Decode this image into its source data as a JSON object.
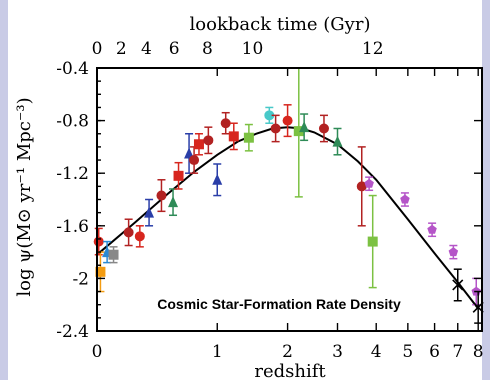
{
  "chart_data": {
    "type": "scatter",
    "annotation": "Cosmic Star-Formation Rate Density",
    "xlabel": "redshift",
    "ylabel": "log ψ(M⊙ yr⁻¹ Mpc⁻³)",
    "x2label": "lookback time (Gyr)",
    "x_scale": "log(1+z)",
    "xlim": [
      0,
      8.2
    ],
    "ylim": [
      -2.4,
      -0.4
    ],
    "x_ticks": [
      "0",
      "1",
      "2",
      "3",
      "4",
      "5",
      "6",
      "7",
      "8"
    ],
    "y_ticks": [
      "-0.4",
      "-0.8",
      "-1.2",
      "-1.6",
      "-2",
      "-2.4"
    ],
    "x2_ticks": [
      "0",
      "2",
      "4",
      "6",
      "8",
      "10",
      "12"
    ],
    "x2_tick_redshifts": [
      0,
      0.15,
      0.33,
      0.56,
      0.89,
      1.45,
      3.9
    ],
    "fit_curve": {
      "x": [
        0,
        0.25,
        0.5,
        0.75,
        1,
        1.25,
        1.5,
        1.75,
        2,
        2.25,
        2.5,
        3,
        3.5,
        4,
        5,
        6,
        7,
        8
      ],
      "y": [
        -1.82,
        -1.57,
        -1.36,
        -1.19,
        -1.06,
        -0.96,
        -0.9,
        -0.86,
        -0.85,
        -0.86,
        -0.89,
        -0.98,
        -1.11,
        -1.25,
        -1.55,
        -1.81,
        -2.03,
        -2.23
      ]
    },
    "points": [
      {
        "x": 0.01,
        "y": -1.72,
        "color": "#d7261e",
        "shape": "circle",
        "err": 0.1
      },
      {
        "x": 0.02,
        "y": -1.95,
        "color": "#f39c12",
        "shape": "square",
        "err": 0.15
      },
      {
        "x": 0.06,
        "y": -1.8,
        "color": "#2a8ad4",
        "shape": "triangle",
        "err": 0.08
      },
      {
        "x": 0.1,
        "y": -1.82,
        "color": "#888888",
        "shape": "square",
        "err": 0.06
      },
      {
        "x": 0.2,
        "y": -1.65,
        "color": "#b22222",
        "shape": "circle",
        "err": 0.1
      },
      {
        "x": 0.28,
        "y": -1.68,
        "color": "#d7261e",
        "shape": "circle",
        "err": 0.08
      },
      {
        "x": 0.35,
        "y": -1.5,
        "color": "#2a3ea8",
        "shape": "triangle",
        "err": 0.1
      },
      {
        "x": 0.45,
        "y": -1.37,
        "color": "#b22222",
        "shape": "circle",
        "err": 0.12
      },
      {
        "x": 0.55,
        "y": -1.42,
        "color": "#2e8b57",
        "shape": "triangle",
        "err": 0.1
      },
      {
        "x": 0.6,
        "y": -1.22,
        "color": "#d7261e",
        "shape": "square",
        "err": 0.1
      },
      {
        "x": 0.7,
        "y": -1.05,
        "color": "#2a3ea8",
        "shape": "triangle",
        "err": 0.15
      },
      {
        "x": 0.75,
        "y": -1.1,
        "color": "#b22222",
        "shape": "circle",
        "err": 0.1
      },
      {
        "x": 0.8,
        "y": -0.98,
        "color": "#d7261e",
        "shape": "square",
        "err": 0.08
      },
      {
        "x": 0.9,
        "y": -0.95,
        "color": "#b22222",
        "shape": "circle",
        "err": 0.1
      },
      {
        "x": 1.0,
        "y": -1.25,
        "color": "#2a3ea8",
        "shape": "triangle",
        "err": 0.12
      },
      {
        "x": 1.1,
        "y": -0.82,
        "color": "#b22222",
        "shape": "circle",
        "err": 0.08
      },
      {
        "x": 1.2,
        "y": -0.92,
        "color": "#d7261e",
        "shape": "square",
        "err": 0.1
      },
      {
        "x": 1.4,
        "y": -0.93,
        "color": "#7cc142",
        "shape": "square",
        "err": 0.1
      },
      {
        "x": 1.7,
        "y": -0.76,
        "color": "#48c9c9",
        "shape": "circle",
        "err": 0.06
      },
      {
        "x": 1.8,
        "y": -0.86,
        "color": "#b22222",
        "shape": "circle",
        "err": 0.1
      },
      {
        "x": 2.0,
        "y": -0.8,
        "color": "#d7261e",
        "shape": "circle",
        "err": 0.12
      },
      {
        "x": 2.2,
        "y": -0.88,
        "color": "#7cc142",
        "shape": "square",
        "err": 0.5
      },
      {
        "x": 2.3,
        "y": -0.85,
        "color": "#2e8b57",
        "shape": "triangle",
        "err": 0.1
      },
      {
        "x": 2.7,
        "y": -0.86,
        "color": "#b22222",
        "shape": "circle",
        "err": 0.1
      },
      {
        "x": 3.0,
        "y": -0.96,
        "color": "#2e8b57",
        "shape": "triangle",
        "err": 0.1
      },
      {
        "x": 3.6,
        "y": -1.3,
        "color": "#b22222",
        "shape": "circle",
        "err": 0.3
      },
      {
        "x": 3.8,
        "y": -1.28,
        "color": "#b555c8",
        "shape": "pentagon",
        "err": 0.05
      },
      {
        "x": 3.9,
        "y": -1.72,
        "color": "#7cc142",
        "shape": "square",
        "err": 0.35
      },
      {
        "x": 4.9,
        "y": -1.4,
        "color": "#b555c8",
        "shape": "pentagon",
        "err": 0.05
      },
      {
        "x": 5.9,
        "y": -1.63,
        "color": "#b555c8",
        "shape": "pentagon",
        "err": 0.05
      },
      {
        "x": 6.8,
        "y": -1.8,
        "color": "#b555c8",
        "shape": "pentagon",
        "err": 0.05
      },
      {
        "x": 7.0,
        "y": -2.05,
        "color": "#000000",
        "shape": "cross",
        "err": 0.12
      },
      {
        "x": 7.9,
        "y": -2.1,
        "color": "#b555c8",
        "shape": "pentagon",
        "err": 0.1
      },
      {
        "x": 8.0,
        "y": -2.22,
        "color": "#000000",
        "shape": "cross",
        "err": 0.12
      }
    ]
  }
}
